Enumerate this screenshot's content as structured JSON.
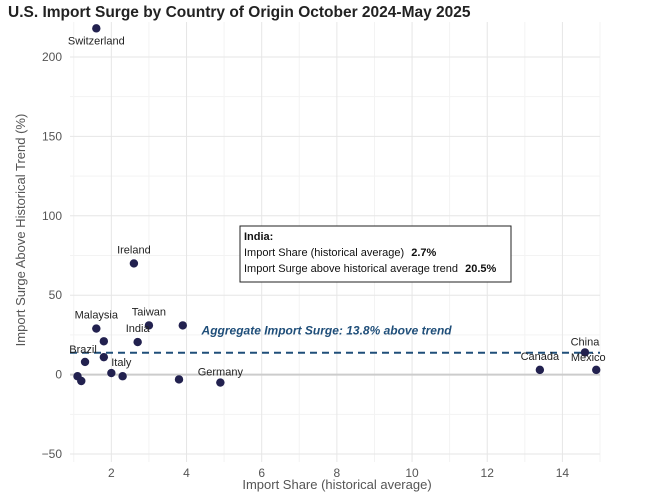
{
  "chart_data": {
    "type": "scatter",
    "title": "U.S. Import Surge by Country of Origin October 2024-May 2025",
    "xlabel": "Import Share (historical average)",
    "ylabel": "Import Surge Above Historical Trend (%)",
    "xlim": [
      0.9,
      15
    ],
    "ylim": [
      -55,
      222
    ],
    "xticks": [
      2,
      4,
      6,
      8,
      10,
      12,
      14
    ],
    "yticks": [
      -50,
      0,
      50,
      100,
      150,
      200
    ],
    "grid": true,
    "point_color": "#22214f",
    "reference_line": {
      "y": 13.8,
      "label": "Aggregate Import Surge: 13.8% above trend",
      "color": "#1f4e79"
    },
    "points": [
      {
        "label": "Switzerland",
        "x": 1.6,
        "y": 218
      },
      {
        "label": "Ireland",
        "x": 2.6,
        "y": 70
      },
      {
        "label": "Malaysia",
        "x": 1.6,
        "y": 29
      },
      {
        "label": "Taiwan",
        "x": 3.0,
        "y": 31
      },
      {
        "label": "",
        "x": 3.9,
        "y": 31
      },
      {
        "label": "India",
        "x": 2.7,
        "y": 20.5
      },
      {
        "label": "",
        "x": 1.8,
        "y": 21
      },
      {
        "label": "Brazil",
        "x": 1.3,
        "y": 8
      },
      {
        "label": "",
        "x": 1.8,
        "y": 11
      },
      {
        "label": "Italy",
        "x": 2.0,
        "y": 1
      },
      {
        "label": "",
        "x": 2.3,
        "y": -1
      },
      {
        "label": "",
        "x": 1.1,
        "y": -1
      },
      {
        "label": "",
        "x": 1.2,
        "y": -4
      },
      {
        "label": "",
        "x": 3.8,
        "y": -3
      },
      {
        "label": "Germany",
        "x": 4.9,
        "y": -5
      },
      {
        "label": "Canada",
        "x": 13.4,
        "y": 3
      },
      {
        "label": "China",
        "x": 14.6,
        "y": 14
      },
      {
        "label": "Mexico",
        "x": 14.9,
        "y": 3
      }
    ],
    "tooltip": {
      "title": "India:",
      "line1_label": "Import Share (historical average)",
      "line1_value": "2.7%",
      "line2_label": "Import Surge above historical average trend",
      "line2_value": "20.5%"
    }
  }
}
